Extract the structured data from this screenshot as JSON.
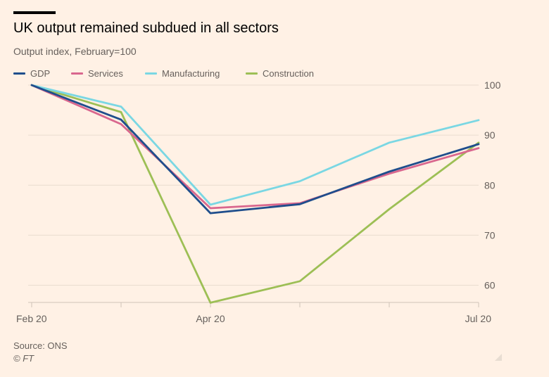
{
  "title": "UK output remained subdued in all sectors",
  "subtitle": "Output index, February=100",
  "source": "Source: ONS",
  "copyright": "© FT",
  "chart_data": {
    "type": "line",
    "x": [
      "Feb 20",
      "Mar 20",
      "Apr 20",
      "May 20",
      "Jun 20",
      "Jul 20"
    ],
    "x_tick_labels": [
      "Feb 20",
      "",
      "Apr 20",
      "",
      "",
      "Jul 20"
    ],
    "series": [
      {
        "name": "GDP",
        "color": "#1f4e8c",
        "values": [
          100,
          93.1,
          74.4,
          76.2,
          82.7,
          88.2
        ]
      },
      {
        "name": "Services",
        "color": "#d9678e",
        "values": [
          100,
          92.2,
          75.4,
          76.4,
          82.3,
          87.4
        ]
      },
      {
        "name": "Manufacturing",
        "color": "#7ad7e3",
        "values": [
          100,
          95.7,
          76.1,
          80.8,
          88.5,
          93.0
        ]
      },
      {
        "name": "Construction",
        "color": "#9dbf55",
        "values": [
          100,
          94.6,
          56.5,
          60.8,
          75.2,
          88.5
        ]
      }
    ],
    "y_ticks": [
      100,
      90,
      80,
      70,
      60
    ],
    "ylim": [
      56.5,
      101
    ],
    "grid": true,
    "y_axis_side": "right",
    "legend_position": "top-left",
    "xlabel": "",
    "ylabel": ""
  }
}
